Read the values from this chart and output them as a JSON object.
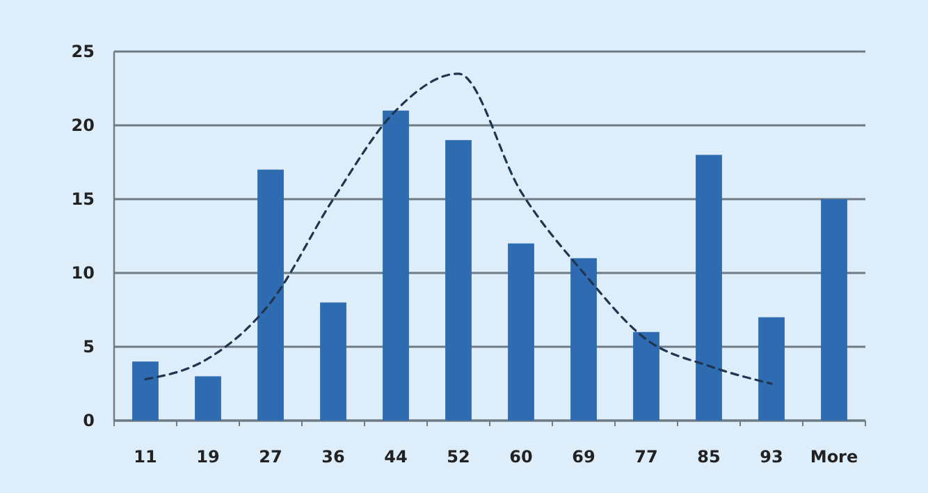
{
  "chart_data": {
    "type": "bar",
    "categories": [
      "11",
      "19",
      "27",
      "36",
      "44",
      "52",
      "60",
      "69",
      "77",
      "85",
      "93",
      "More"
    ],
    "series": [
      {
        "color": "#2e6bb0",
        "values": [
          4,
          3,
          17,
          8,
          21,
          19,
          12,
          11,
          6,
          18,
          7,
          15
        ]
      },
      {
        "type": "line",
        "color": "#1f3550",
        "line_style": "dashed",
        "marker": "none",
        "values": [
          2.8,
          4.2,
          8,
          15,
          21,
          23.5,
          15.5,
          10,
          5.5,
          3.7,
          2.5,
          null
        ]
      }
    ],
    "ylim": [
      0,
      25
    ],
    "yticks": [
      0,
      5,
      10,
      15,
      20,
      25
    ],
    "grid": "y"
  }
}
